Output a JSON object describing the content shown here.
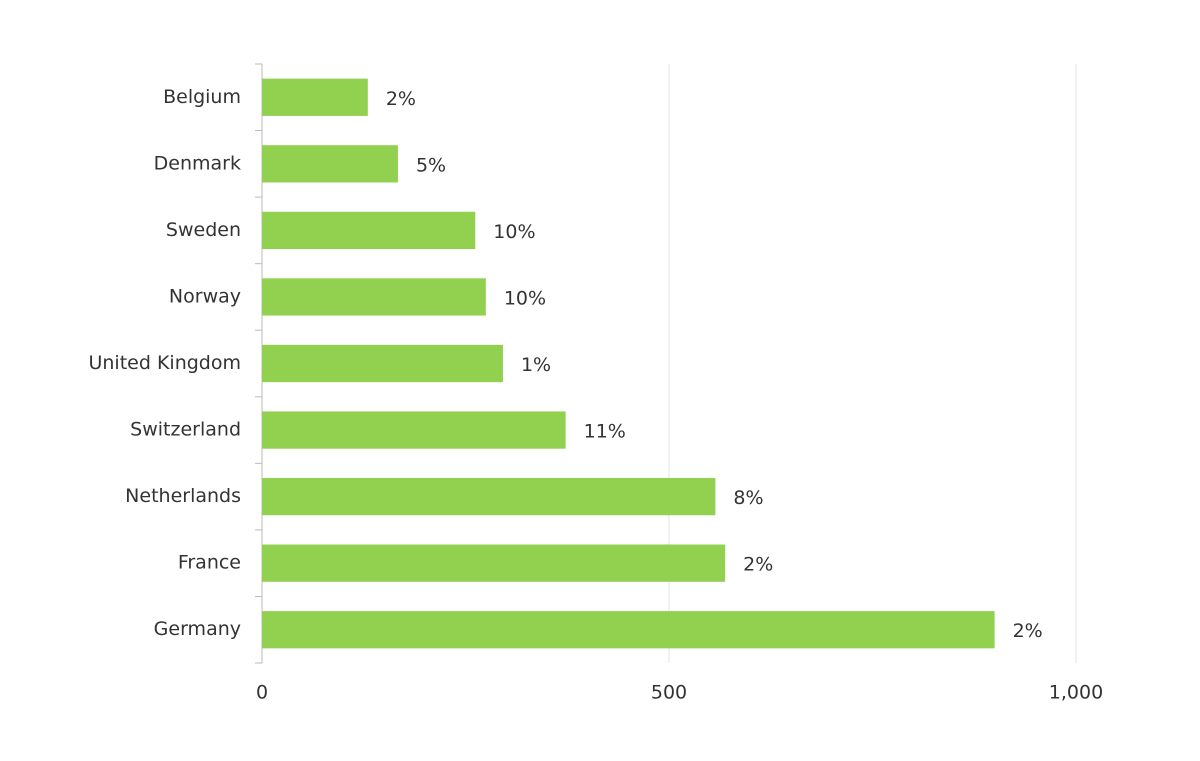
{
  "chart_data": {
    "type": "bar",
    "orientation": "horizontal",
    "categories": [
      "Belgium",
      "Denmark",
      "Sweden",
      "Norway",
      "United Kingdom",
      "Switzerland",
      "Netherlands",
      "France",
      "Germany"
    ],
    "values": [
      130,
      167,
      262,
      275,
      296,
      373,
      557,
      569,
      900
    ],
    "bar_labels": [
      "2%",
      "5%",
      "10%",
      "10%",
      "1%",
      "11%",
      "8%",
      "2%",
      "2%"
    ],
    "color": "#92d050",
    "xlim": [
      0,
      1000
    ],
    "xticks": [
      0,
      500,
      {
        "value": 1000,
        "label": "1,000"
      }
    ],
    "grid": true
  }
}
